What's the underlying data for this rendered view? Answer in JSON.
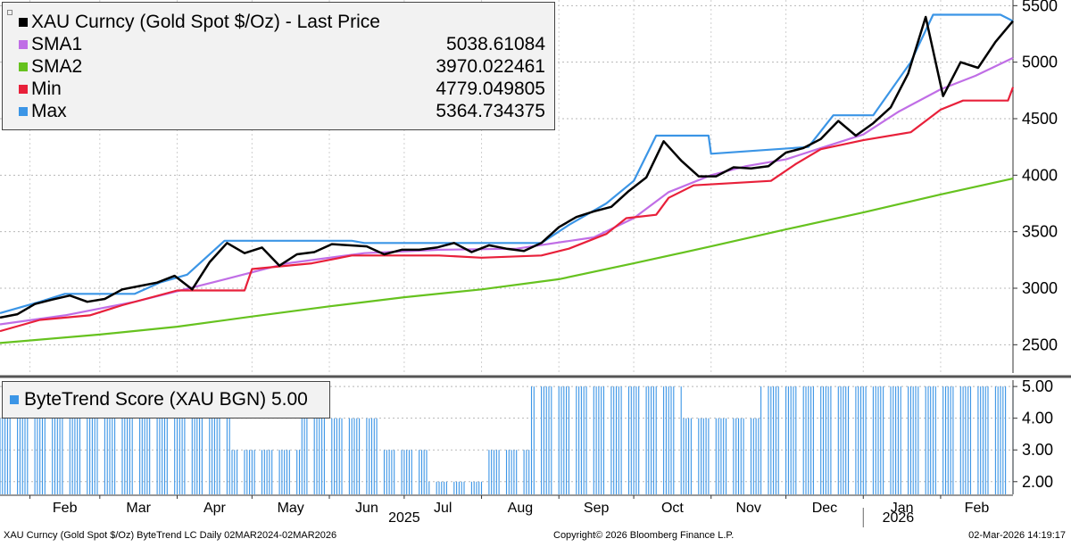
{
  "legend": {
    "items": [
      {
        "name": "XAU Curncy (Gold Spot  $/Oz) - Last Price",
        "value": "",
        "color": "#000000"
      },
      {
        "name": "SMA1",
        "value": "5038.61084",
        "color": "#c06ee6"
      },
      {
        "name": "SMA2",
        "value": "3970.022461",
        "color": "#66c21f"
      },
      {
        "name": "Min",
        "value": "4779.049805",
        "color": "#e8203a"
      },
      {
        "name": "Max",
        "value": "5364.734375",
        "color": "#3b95e6"
      }
    ]
  },
  "score_legend": {
    "label": "ByteTrend Score (XAU BGN) 5.00",
    "color": "#3b95e6"
  },
  "footer": {
    "left": "XAU Curncy (Gold Spot  $/Oz) ByteTrend LC Daily 02MAR2024-02MAR2026",
    "center": "Copyright© 2026 Bloomberg Finance L.P.",
    "right": "02-Mar-2026 14:19:17"
  },
  "chart_data": [
    {
      "type": "line",
      "title": "XAU Curncy (Gold Spot  $/Oz) - Last Price",
      "grid": true,
      "legend_position": "top-left",
      "ylim": [
        2250,
        5550
      ],
      "yticks": [
        2500,
        3000,
        3500,
        4000,
        4500,
        5000,
        5500
      ],
      "x_range": [
        "2025-01-20",
        "2026-03-02"
      ],
      "x_month_labels": [
        {
          "date": "2025-02-01",
          "label": "Feb"
        },
        {
          "date": "2025-03-01",
          "label": "Mar"
        },
        {
          "date": "2025-04-01",
          "label": "Apr"
        },
        {
          "date": "2025-05-01",
          "label": "May"
        },
        {
          "date": "2025-06-01",
          "label": "Jun"
        },
        {
          "date": "2025-07-01",
          "label": "Jul"
        },
        {
          "date": "2025-08-01",
          "label": "Aug"
        },
        {
          "date": "2025-09-01",
          "label": "Sep"
        },
        {
          "date": "2025-10-01",
          "label": "Oct"
        },
        {
          "date": "2025-11-01",
          "label": "Nov"
        },
        {
          "date": "2025-12-01",
          "label": "Dec"
        },
        {
          "date": "2026-01-01",
          "label": "Jan"
        },
        {
          "date": "2026-02-01",
          "label": "Feb"
        }
      ],
      "x_year_labels": [
        {
          "date": "2025-07-01",
          "label": "2025"
        },
        {
          "date": "2026-01-15",
          "label": "2026"
        }
      ],
      "series": [
        {
          "name": "XAU Curncy (Gold Spot  $/Oz) - Last Price",
          "color": "#000000",
          "points": [
            [
              "2025-01-20",
              2740
            ],
            [
              "2025-01-27",
              2770
            ],
            [
              "2025-02-03",
              2860
            ],
            [
              "2025-02-10",
              2900
            ],
            [
              "2025-02-17",
              2935
            ],
            [
              "2025-02-24",
              2880
            ],
            [
              "2025-03-03",
              2905
            ],
            [
              "2025-03-10",
              2990
            ],
            [
              "2025-03-17",
              3020
            ],
            [
              "2025-03-24",
              3050
            ],
            [
              "2025-03-31",
              3110
            ],
            [
              "2025-04-07",
              2990
            ],
            [
              "2025-04-14",
              3230
            ],
            [
              "2025-04-21",
              3400
            ],
            [
              "2025-04-28",
              3310
            ],
            [
              "2025-05-05",
              3360
            ],
            [
              "2025-05-12",
              3200
            ],
            [
              "2025-05-19",
              3300
            ],
            [
              "2025-05-26",
              3320
            ],
            [
              "2025-06-02",
              3390
            ],
            [
              "2025-06-09",
              3380
            ],
            [
              "2025-06-16",
              3370
            ],
            [
              "2025-06-23",
              3300
            ],
            [
              "2025-06-30",
              3340
            ],
            [
              "2025-07-07",
              3340
            ],
            [
              "2025-07-14",
              3360
            ],
            [
              "2025-07-21",
              3400
            ],
            [
              "2025-07-28",
              3320
            ],
            [
              "2025-08-04",
              3380
            ],
            [
              "2025-08-11",
              3350
            ],
            [
              "2025-08-18",
              3330
            ],
            [
              "2025-08-25",
              3400
            ],
            [
              "2025-09-01",
              3540
            ],
            [
              "2025-09-08",
              3630
            ],
            [
              "2025-09-15",
              3680
            ],
            [
              "2025-09-22",
              3720
            ],
            [
              "2025-09-29",
              3860
            ],
            [
              "2025-10-06",
              3980
            ],
            [
              "2025-10-13",
              4300
            ],
            [
              "2025-10-20",
              4130
            ],
            [
              "2025-10-27",
              3990
            ],
            [
              "2025-11-03",
              3990
            ],
            [
              "2025-11-10",
              4070
            ],
            [
              "2025-11-17",
              4060
            ],
            [
              "2025-11-24",
              4080
            ],
            [
              "2025-12-01",
              4200
            ],
            [
              "2025-12-08",
              4240
            ],
            [
              "2025-12-15",
              4320
            ],
            [
              "2025-12-22",
              4480
            ],
            [
              "2025-12-29",
              4350
            ],
            [
              "2026-01-05",
              4460
            ],
            [
              "2026-01-12",
              4600
            ],
            [
              "2026-01-19",
              4900
            ],
            [
              "2026-01-26",
              5400
            ],
            [
              "2026-02-02",
              4700
            ],
            [
              "2026-02-09",
              5000
            ],
            [
              "2026-02-16",
              4950
            ],
            [
              "2026-02-23",
              5180
            ],
            [
              "2026-03-02",
              5364
            ]
          ]
        },
        {
          "name": "SMA1",
          "color": "#c06ee6",
          "points": [
            [
              "2025-01-20",
              2680
            ],
            [
              "2025-02-15",
              2760
            ],
            [
              "2025-03-15",
              2880
            ],
            [
              "2025-04-15",
              3050
            ],
            [
              "2025-05-15",
              3220
            ],
            [
              "2025-06-15",
              3310
            ],
            [
              "2025-07-15",
              3340
            ],
            [
              "2025-08-15",
              3350
            ],
            [
              "2025-09-15",
              3450
            ],
            [
              "2025-10-01",
              3620
            ],
            [
              "2025-10-15",
              3850
            ],
            [
              "2025-11-01",
              4000
            ],
            [
              "2025-11-15",
              4080
            ],
            [
              "2025-12-01",
              4140
            ],
            [
              "2025-12-15",
              4240
            ],
            [
              "2026-01-01",
              4360
            ],
            [
              "2026-01-15",
              4560
            ],
            [
              "2026-02-01",
              4760
            ],
            [
              "2026-02-15",
              4880
            ],
            [
              "2026-03-02",
              5038
            ]
          ]
        },
        {
          "name": "SMA2",
          "color": "#66c21f",
          "points": [
            [
              "2025-01-20",
              2515
            ],
            [
              "2025-03-01",
              2590
            ],
            [
              "2025-04-01",
              2660
            ],
            [
              "2025-05-01",
              2750
            ],
            [
              "2025-06-01",
              2840
            ],
            [
              "2025-07-01",
              2920
            ],
            [
              "2025-08-01",
              2990
            ],
            [
              "2025-09-01",
              3080
            ],
            [
              "2025-10-01",
              3220
            ],
            [
              "2025-11-01",
              3370
            ],
            [
              "2025-12-01",
              3520
            ],
            [
              "2026-01-01",
              3670
            ],
            [
              "2026-02-01",
              3830
            ],
            [
              "2026-03-02",
              3970
            ]
          ]
        },
        {
          "name": "Min",
          "color": "#e8203a",
          "points": [
            [
              "2025-01-20",
              2620
            ],
            [
              "2025-02-05",
              2720
            ],
            [
              "2025-02-25",
              2760
            ],
            [
              "2025-03-10",
              2850
            ],
            [
              "2025-04-01",
              2980
            ],
            [
              "2025-04-28",
              2980
            ],
            [
              "2025-05-01",
              3170
            ],
            [
              "2025-05-25",
              3220
            ],
            [
              "2025-06-10",
              3290
            ],
            [
              "2025-07-15",
              3290
            ],
            [
              "2025-08-01",
              3270
            ],
            [
              "2025-08-25",
              3290
            ],
            [
              "2025-09-05",
              3350
            ],
            [
              "2025-09-20",
              3480
            ],
            [
              "2025-09-28",
              3620
            ],
            [
              "2025-10-10",
              3650
            ],
            [
              "2025-10-15",
              3800
            ],
            [
              "2025-10-25",
              3910
            ],
            [
              "2025-11-25",
              3950
            ],
            [
              "2025-12-05",
              4100
            ],
            [
              "2025-12-15",
              4230
            ],
            [
              "2026-01-01",
              4310
            ],
            [
              "2026-01-20",
              4380
            ],
            [
              "2026-02-01",
              4580
            ],
            [
              "2026-02-10",
              4660
            ],
            [
              "2026-02-28",
              4660
            ],
            [
              "2026-03-02",
              4779
            ]
          ]
        },
        {
          "name": "Max",
          "color": "#3b95e6",
          "points": [
            [
              "2025-01-20",
              2780
            ],
            [
              "2025-02-05",
              2880
            ],
            [
              "2025-02-15",
              2950
            ],
            [
              "2025-03-15",
              2950
            ],
            [
              "2025-03-25",
              3050
            ],
            [
              "2025-04-05",
              3120
            ],
            [
              "2025-04-20",
              3420
            ],
            [
              "2025-06-10",
              3420
            ],
            [
              "2025-06-15",
              3400
            ],
            [
              "2025-08-25",
              3400
            ],
            [
              "2025-09-05",
              3560
            ],
            [
              "2025-09-20",
              3750
            ],
            [
              "2025-10-01",
              3950
            ],
            [
              "2025-10-10",
              4350
            ],
            [
              "2025-10-31",
              4350
            ],
            [
              "2025-11-01",
              4190
            ],
            [
              "2025-12-10",
              4250
            ],
            [
              "2025-12-20",
              4530
            ],
            [
              "2026-01-05",
              4530
            ],
            [
              "2026-01-20",
              5000
            ],
            [
              "2026-01-29",
              5420
            ],
            [
              "2026-02-25",
              5420
            ],
            [
              "2026-03-02",
              5364
            ]
          ]
        }
      ]
    },
    {
      "type": "bar",
      "title": "ByteTrend Score (XAU BGN) 5.00",
      "ylim": [
        1.6,
        5.2
      ],
      "yticks": [
        2,
        3,
        4,
        5
      ],
      "ytick_labels": [
        "2.00",
        "3.00",
        "4.00",
        "5.00"
      ],
      "x_range": [
        "2025-01-20",
        "2026-03-02"
      ],
      "series": [
        {
          "name": "ByteTrend Score (XAU BGN)",
          "color": "#3b95e6",
          "segments": [
            {
              "from": "2025-01-20",
              "to": "2025-03-25",
              "value": 4
            },
            {
              "from": "2025-03-26",
              "to": "2025-04-22",
              "value": 5
            },
            {
              "from": "2025-04-23",
              "to": "2025-05-20",
              "value": 3
            },
            {
              "from": "2025-05-21",
              "to": "2025-06-20",
              "value": 4
            },
            {
              "from": "2025-06-21",
              "to": "2025-07-10",
              "value": 3
            },
            {
              "from": "2025-07-11",
              "to": "2025-08-01",
              "value": 2
            },
            {
              "from": "2025-08-02",
              "to": "2025-08-20",
              "value": 3
            },
            {
              "from": "2025-08-21",
              "to": "2025-10-20",
              "value": 5
            },
            {
              "from": "2025-10-21",
              "to": "2025-11-20",
              "value": 4
            },
            {
              "from": "2025-11-21",
              "to": "2026-03-02",
              "value": 5
            }
          ]
        }
      ]
    }
  ]
}
